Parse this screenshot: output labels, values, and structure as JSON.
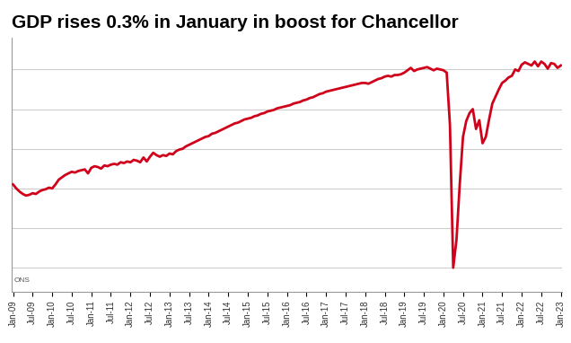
{
  "chart_data": {
    "type": "line",
    "title": "GDP rises 0.3% in January in boost for Chancellor",
    "source": "ONS",
    "color": "#d0021b",
    "grid": true,
    "tick_labels": "x",
    "ylim": [
      72,
      104
    ],
    "yticks": [
      75,
      80,
      85,
      90,
      95,
      100
    ],
    "categories": [
      "Jan-09",
      null,
      null,
      null,
      null,
      null,
      "Jul-09",
      null,
      null,
      null,
      null,
      null,
      "Jan-10",
      null,
      null,
      null,
      null,
      null,
      "Jul-10",
      null,
      null,
      null,
      null,
      null,
      "Jan-11",
      null,
      null,
      null,
      null,
      null,
      "Jul-11",
      null,
      null,
      null,
      null,
      null,
      "Jan-12",
      null,
      null,
      null,
      null,
      null,
      "Jul-12",
      null,
      null,
      null,
      null,
      null,
      "Jan-13",
      null,
      null,
      null,
      null,
      null,
      "Jul-13",
      null,
      null,
      null,
      null,
      null,
      "Jan-14",
      null,
      null,
      null,
      null,
      null,
      "Jul-14",
      null,
      null,
      null,
      null,
      null,
      "Jan-15",
      null,
      null,
      null,
      null,
      null,
      "Jul-15",
      null,
      null,
      null,
      null,
      null,
      "Jan-16",
      null,
      null,
      null,
      null,
      null,
      "Jul-16",
      null,
      null,
      null,
      null,
      null,
      "Jan-17",
      null,
      null,
      null,
      null,
      null,
      "Jul-17",
      null,
      null,
      null,
      null,
      null,
      "Jan-18",
      null,
      null,
      null,
      null,
      null,
      "Jul-18",
      null,
      null,
      null,
      null,
      null,
      "Jan-19",
      null,
      null,
      null,
      null,
      null,
      "Jul-19",
      null,
      null,
      null,
      null,
      null,
      "Jan-20",
      null,
      null,
      null,
      null,
      null,
      "Jul-20",
      null,
      null,
      null,
      null,
      null,
      "Jan-21",
      null,
      null,
      null,
      null,
      null,
      "Jul-21",
      null,
      null,
      null,
      null,
      null,
      "Jan-22",
      null,
      null,
      null,
      null,
      null,
      "Jul-22",
      null,
      null,
      null,
      null,
      null,
      "Jan-23"
    ],
    "values": [
      85.5,
      85.0,
      84.6,
      84.3,
      84.1,
      84.2,
      84.4,
      84.3,
      84.6,
      84.8,
      84.9,
      85.1,
      85.0,
      85.5,
      86.1,
      86.4,
      86.7,
      86.9,
      87.1,
      87.0,
      87.2,
      87.3,
      87.4,
      86.9,
      87.6,
      87.8,
      87.7,
      87.5,
      87.9,
      87.8,
      88.0,
      88.1,
      88.0,
      88.3,
      88.2,
      88.4,
      88.3,
      88.6,
      88.5,
      88.3,
      88.9,
      88.4,
      89.0,
      89.5,
      89.2,
      89.0,
      89.2,
      89.1,
      89.4,
      89.3,
      89.7,
      89.9,
      90.0,
      90.3,
      90.5,
      90.7,
      90.9,
      91.1,
      91.3,
      91.5,
      91.6,
      91.9,
      92.0,
      92.2,
      92.4,
      92.6,
      92.8,
      93.0,
      93.2,
      93.3,
      93.5,
      93.7,
      93.8,
      93.9,
      94.1,
      94.2,
      94.4,
      94.5,
      94.7,
      94.8,
      94.9,
      95.1,
      95.2,
      95.3,
      95.4,
      95.5,
      95.7,
      95.8,
      95.9,
      96.1,
      96.2,
      96.4,
      96.5,
      96.7,
      96.9,
      97.0,
      97.2,
      97.3,
      97.4,
      97.5,
      97.6,
      97.7,
      97.8,
      97.9,
      98.0,
      98.1,
      98.2,
      98.3,
      98.3,
      98.2,
      98.4,
      98.6,
      98.8,
      98.9,
      99.1,
      99.2,
      99.1,
      99.3,
      99.3,
      99.4,
      99.6,
      99.9,
      100.2,
      99.8,
      100.0,
      100.1,
      100.2,
      100.3,
      100.1,
      99.9,
      100.1,
      100.0,
      99.9,
      99.6,
      93.0,
      75.0,
      78.5,
      85.5,
      91.5,
      93.5,
      94.5,
      95.0,
      92.5,
      93.6,
      90.7,
      91.5,
      93.7,
      95.7,
      96.6,
      97.5,
      98.3,
      98.6,
      99.0,
      99.2,
      100.0,
      99.8,
      100.6,
      100.9,
      100.7,
      100.5,
      101.0,
      100.4,
      101.0,
      100.7,
      100.1,
      100.8,
      100.7,
      100.2,
      100.5
    ]
  }
}
